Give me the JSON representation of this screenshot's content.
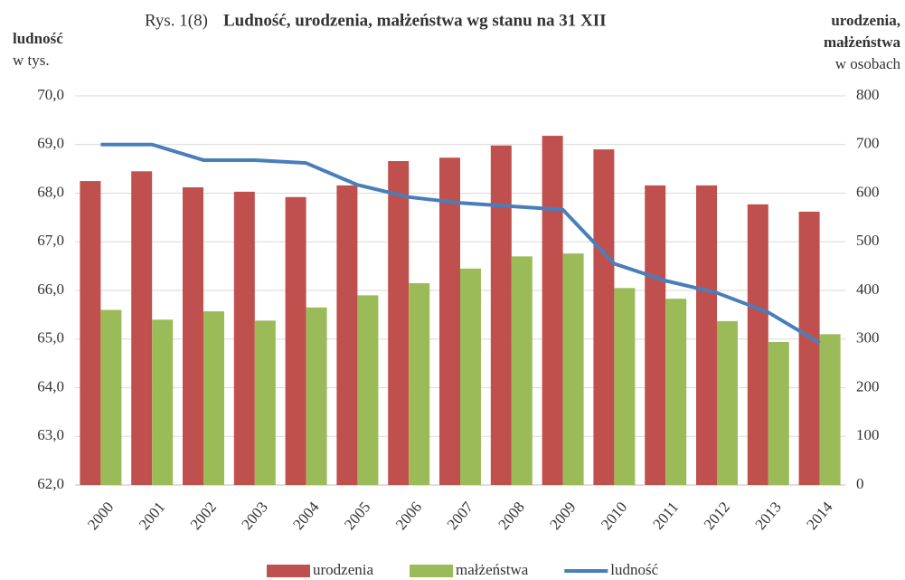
{
  "chart_data": {
    "type": "bar_line",
    "title_prefix": "Rys. 1(8)",
    "title": "Ludność, urodzenia, małżeństwa  wg stanu na 31 XII",
    "y_label": "ludność",
    "y_unit": "w tys.",
    "y2_label_1": "urodzenia,",
    "y2_label_2": "małżeństwa",
    "y2_unit": "w osobach",
    "categories": [
      "2000",
      "2001",
      "2002",
      "2003",
      "2004",
      "2005",
      "2006",
      "2007",
      "2008",
      "2009",
      "2010",
      "2011",
      "2012",
      "2013",
      "2014"
    ],
    "series": [
      {
        "name": "urodzenia",
        "color": "#c0504d",
        "kind": "bar",
        "axis": "y2",
        "values": [
          625,
          645,
          612,
          603,
          592,
          616,
          666,
          673,
          698,
          718,
          690,
          616,
          616,
          577,
          562
        ]
      },
      {
        "name": "małżeństwa",
        "color": "#9bbb59",
        "kind": "bar",
        "axis": "y2",
        "values": [
          360,
          340,
          357,
          338,
          365,
          390,
          415,
          445,
          470,
          476,
          405,
          383,
          337,
          294,
          310
        ]
      },
      {
        "name": "ludność",
        "color": "#4a7ebb",
        "kind": "line",
        "axis": "y",
        "values": [
          69.0,
          69.0,
          68.68,
          68.68,
          68.62,
          68.17,
          67.92,
          67.8,
          67.73,
          67.66,
          66.55,
          66.2,
          65.95,
          65.55,
          64.92
        ]
      }
    ],
    "ylim": [
      62,
      70
    ],
    "yticks": [
      {
        "value": 62,
        "label": "62,0"
      },
      {
        "value": 63,
        "label": "63,0"
      },
      {
        "value": 64,
        "label": "64,0"
      },
      {
        "value": 65,
        "label": "65,0"
      },
      {
        "value": 66,
        "label": "66,0"
      },
      {
        "value": 67,
        "label": "67,0"
      },
      {
        "value": 68,
        "label": "68,0"
      },
      {
        "value": 69,
        "label": "69,0"
      },
      {
        "value": 70,
        "label": "70,0"
      }
    ],
    "y2lim": [
      0,
      800
    ],
    "y2ticks": [
      0,
      100,
      200,
      300,
      400,
      500,
      600,
      700,
      800
    ],
    "grid": true
  }
}
